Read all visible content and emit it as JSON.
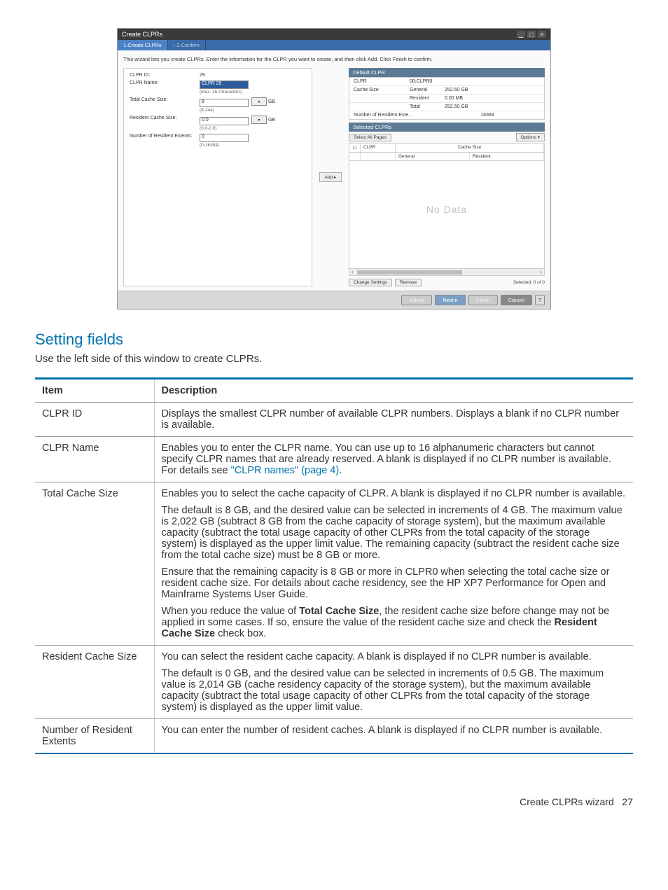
{
  "dialog": {
    "title": "Create CLPRs",
    "tabs": {
      "step1": "1.Create CLPRs",
      "step2": "2.Confirm"
    },
    "intro": "This wizard lets you create CLPRs. Enter the information for the CLPR you want to create, and then click Add. Click Finish to confirm.",
    "form": {
      "clpr_id_label": "CLPR ID:",
      "clpr_id_value": "29",
      "clpr_name_label": "CLPR Name:",
      "clpr_name_value": "CLPR 29",
      "clpr_name_hint": "(Max. 16 Characters)",
      "total_cache_label": "Total Cache Size:",
      "total_cache_value": "8",
      "total_cache_hint": "(8-244)",
      "resident_cache_label": "Resident Cache Size:",
      "resident_cache_value": "0.0",
      "resident_cache_hint": "(0.0-0.0)",
      "num_extents_label": "Number of Resident Extents:",
      "num_extents_value": "0",
      "num_extents_hint": "(0-16384)",
      "gb_unit": "GB",
      "dropdown_arrow": "▾"
    },
    "add_button": "Add ▸",
    "default_clpr": {
      "header": "Default CLPR",
      "clpr_label": "CLPR",
      "clpr_value": "00:CLPR0",
      "cachesize_label": "Cache Size",
      "general_label": "General",
      "general_value": "252.50 GB",
      "resident_label": "Resident",
      "resident_value": "0.00 MB",
      "total_label": "Total",
      "total_value": "252.50 GB",
      "num_ext_label": "Number of Resident Exte...",
      "num_ext_value": "16384"
    },
    "selected": {
      "header": "Selected CLPRs",
      "select_all": "Select All Pages",
      "options": "Options ▾",
      "col_clpr": "CLPR",
      "col_cachesize": "Cache Size",
      "col_general": "General",
      "col_resident": "Resident",
      "nodata": "No Data",
      "change_settings": "Change Settings",
      "remove": "Remove",
      "selected_count": "Selected: 0   of  0"
    },
    "footer": {
      "back": "◂ Back",
      "next": "Next ▸",
      "finish": "Finish",
      "cancel": "Cancel",
      "help": "?"
    }
  },
  "section": {
    "heading": "Setting fields",
    "intro": "Use the left side of this window to create CLPRs."
  },
  "table": {
    "header_item": "Item",
    "header_desc": "Description",
    "rows": {
      "clpr_id": {
        "item": "CLPR ID",
        "desc": "Displays the smallest CLPR number of available CLPR numbers. Displays a blank if no CLPR number is available."
      },
      "clpr_name": {
        "item": "CLPR Name",
        "desc_pre": "Enables you to enter the CLPR name. You can use up to 16 alphanumeric characters but cannot specify CLPR names that are already reserved. A blank is displayed if no CLPR number is available. For details see ",
        "xref": "\"CLPR names\" (page 4)",
        "desc_post": "."
      },
      "total_cache": {
        "item": "Total Cache Size",
        "p1": "Enables you to select the cache capacity of CLPR. A blank is displayed if no CLPR number is available.",
        "p2": "The default is 8 GB, and the desired value can be selected in increments of 4 GB. The maximum value is 2,022 GB (subtract 8 GB from the cache capacity of storage system), but the maximum available capacity (subtract the total usage capacity of other CLPRs from the total capacity of the storage system) is displayed as the upper limit value. The remaining capacity (subtract the resident cache size from the total cache size) must be 8 GB or more.",
        "p3": "Ensure that the remaining capacity is 8 GB or more in CLPR0 when selecting the total cache size or resident cache size. For details about cache residency, see the HP XP7 Performance for Open and Mainframe Systems User Guide.",
        "p4_pre": "When you reduce the value of ",
        "p4_b1": "Total Cache Size",
        "p4_mid": ", the resident cache size before change may not be applied in some cases. If so, ensure the value of the resident cache size and check the ",
        "p4_b2": "Resident Cache Size",
        "p4_post": " check box."
      },
      "resident_cache": {
        "item": "Resident Cache Size",
        "p1": "You can select the resident cache capacity. A blank is displayed if no CLPR number is available.",
        "p2": "The default is 0 GB, and the desired value can be selected in increments of 0.5 GB. The maximum value is 2,014 GB (cache residency capacity of the storage system), but the maximum available capacity (subtract the total usage capacity of other CLPRs from the total capacity of the storage system) is displayed as the upper limit value."
      },
      "num_extents": {
        "item": "Number of Resident Extents",
        "desc": "You can enter the number of resident caches. A blank is displayed if no CLPR number is available."
      }
    }
  },
  "footer": {
    "text": "Create CLPRs wizard",
    "page": "27"
  }
}
